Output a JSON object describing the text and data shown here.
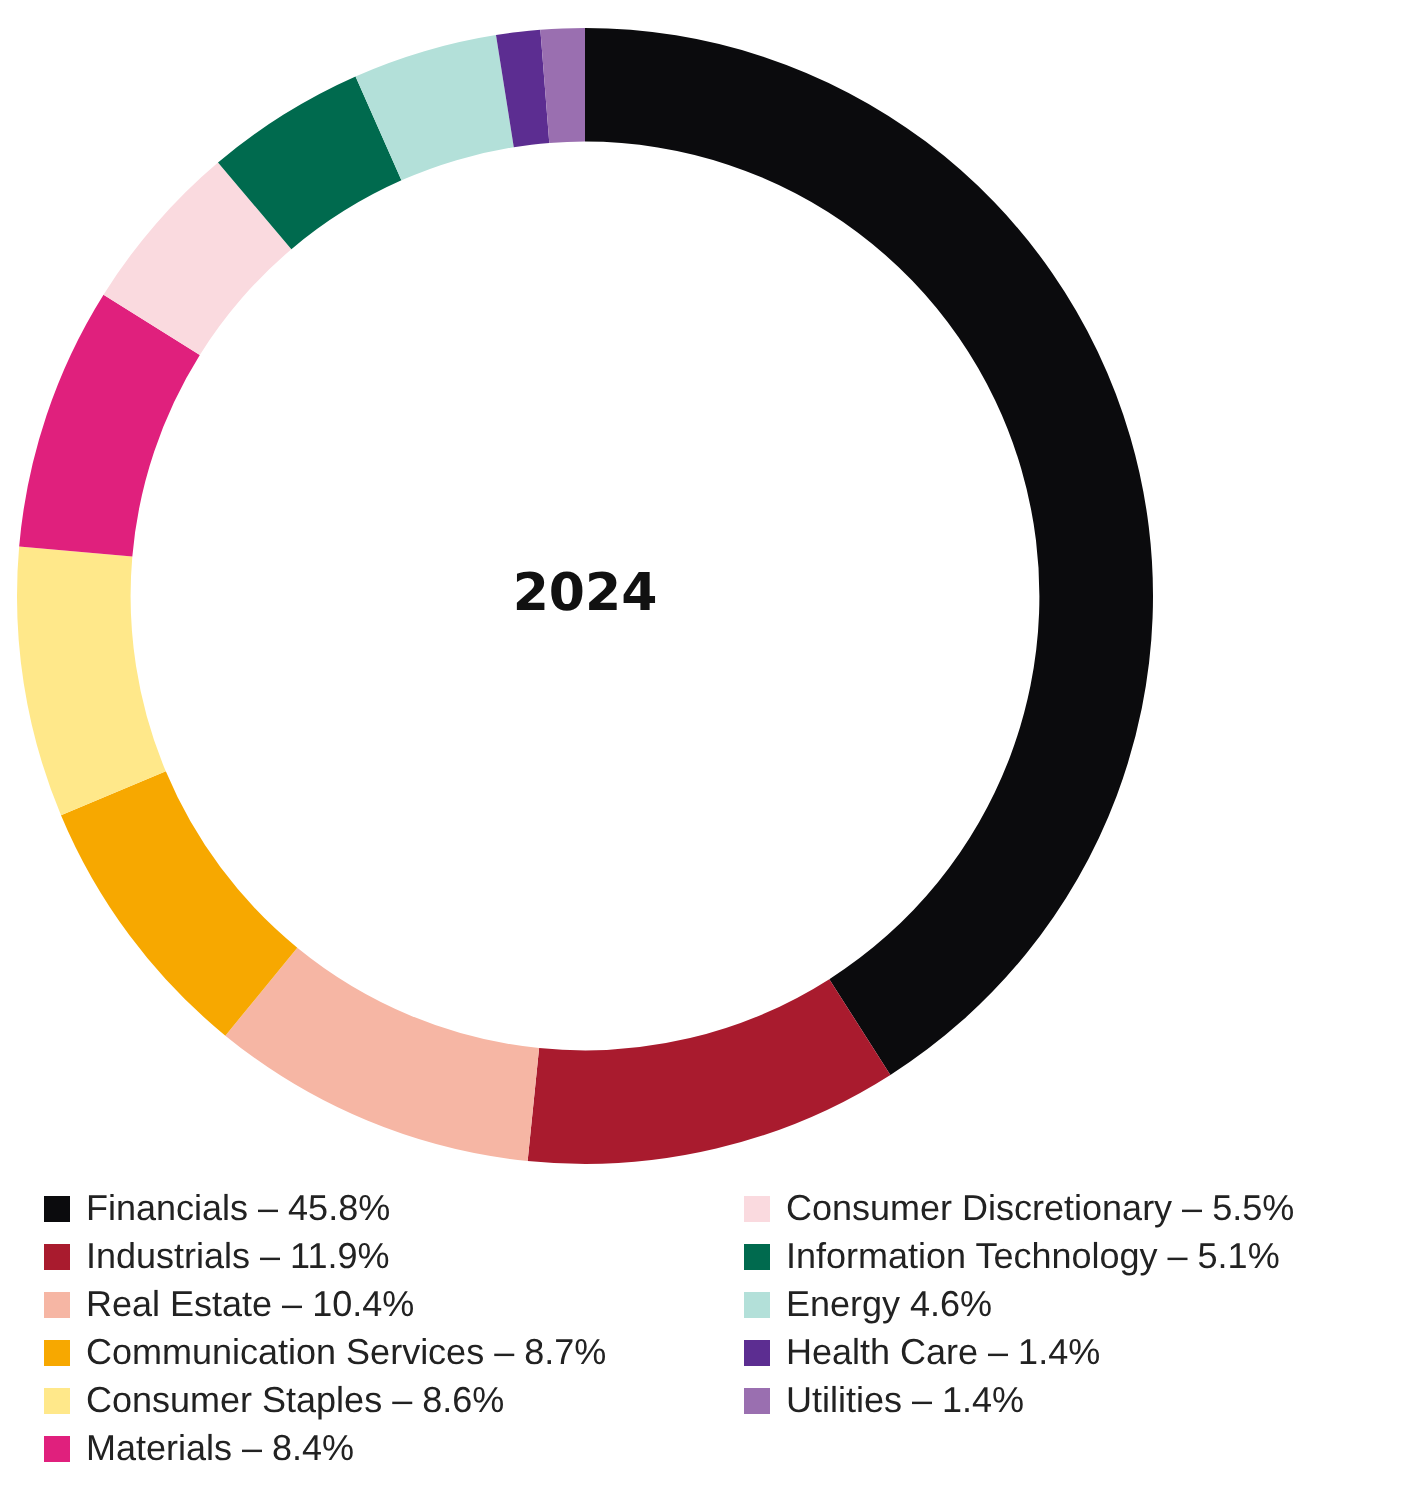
{
  "chart_data": {
    "type": "donut",
    "title": "2024",
    "categories": [
      "Financials – 45.8%",
      "Industrials – 11.9%",
      "Real Estate – 10.4%",
      "Communication Services – 8.7%",
      "Consumer Staples – 8.6%",
      "Materials – 8.4%",
      "Consumer Discretionary – 5.5%",
      "Information Technology – 5.1%",
      "Energy 4.6%",
      "Health Care – 1.4%",
      "Utilities – 1.4%"
    ],
    "values": [
      45.8,
      11.9,
      10.4,
      8.7,
      8.6,
      8.4,
      5.5,
      5.1,
      4.6,
      1.4,
      1.4
    ],
    "colors": [
      "#0b0b0d",
      "#a91b2e",
      "#f6b6a4",
      "#f7a800",
      "#ffe88a",
      "#e0207d",
      "#fadadf",
      "#006a4e",
      "#b3e0d9",
      "#5c2d91",
      "#9a6fb0"
    ],
    "legend": "bottom"
  }
}
